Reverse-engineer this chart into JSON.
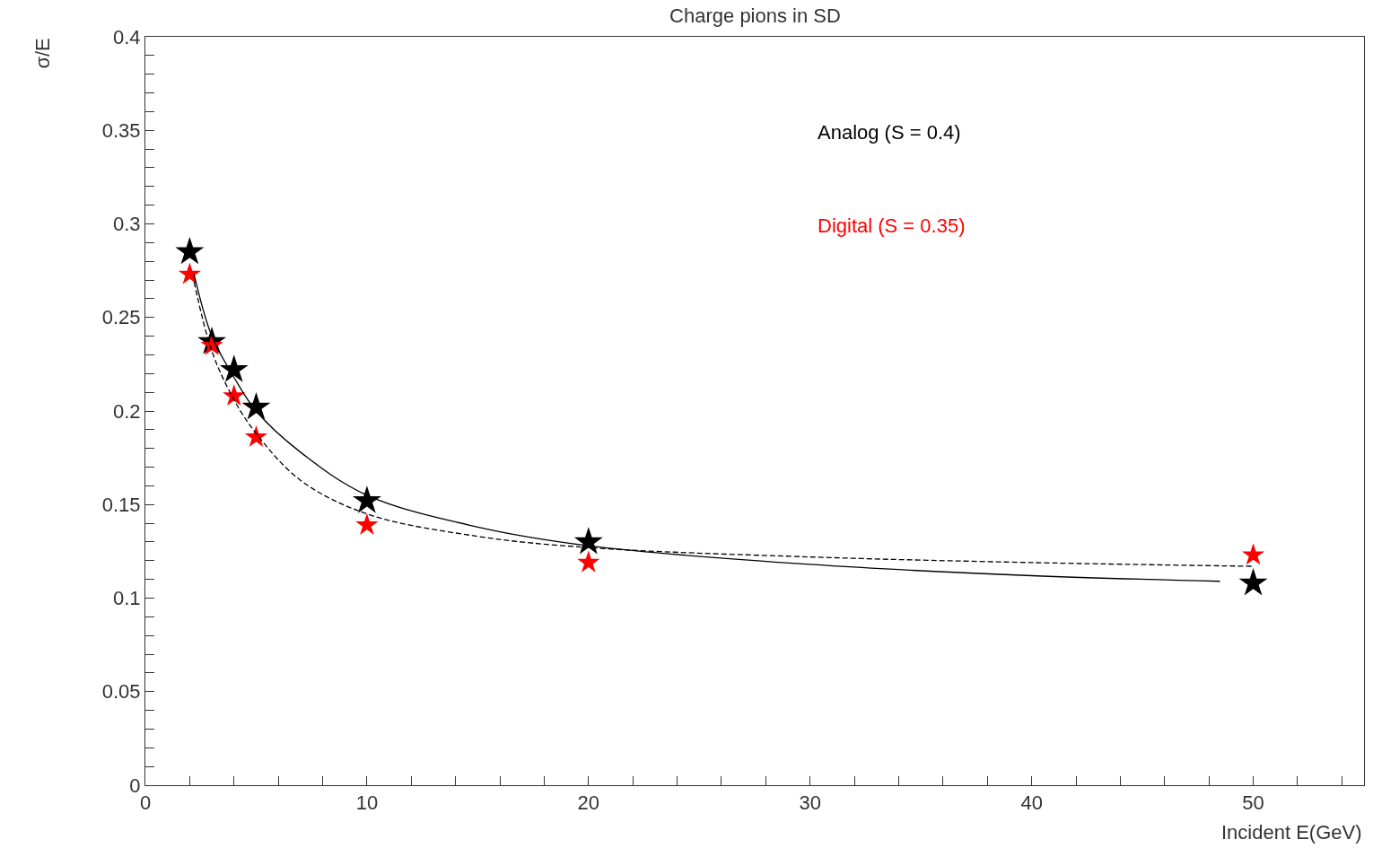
{
  "chart_data": {
    "type": "scatter",
    "title": "Charge pions in SD",
    "xlabel": "Incident E(GeV)",
    "ylabel": "σ/E",
    "marker": "star",
    "legend": false,
    "xlim": [
      0,
      55
    ],
    "ylim": [
      0,
      0.4
    ],
    "xticks": [
      0,
      {
        "value": 2,
        "label": null
      },
      {
        "value": 4,
        "label": null
      },
      {
        "value": 6,
        "label": null
      },
      {
        "value": 8,
        "label": null
      },
      10,
      {
        "value": 12,
        "label": null
      },
      {
        "value": 14,
        "label": null
      },
      {
        "value": 16,
        "label": null
      },
      {
        "value": 18,
        "label": null
      },
      20,
      {
        "value": 22,
        "label": null
      },
      {
        "value": 24,
        "label": null
      },
      {
        "value": 26,
        "label": null
      },
      {
        "value": 28,
        "label": null
      },
      30,
      {
        "value": 32,
        "label": null
      },
      {
        "value": 34,
        "label": null
      },
      {
        "value": 36,
        "label": null
      },
      {
        "value": 38,
        "label": null
      },
      40,
      {
        "value": 42,
        "label": null
      },
      {
        "value": 44,
        "label": null
      },
      {
        "value": 46,
        "label": null
      },
      {
        "value": 48,
        "label": null
      },
      50,
      {
        "value": 52,
        "label": null
      },
      {
        "value": 54,
        "label": null
      }
    ],
    "yticks": [
      0,
      {
        "value": 0.01,
        "label": null
      },
      {
        "value": 0.02,
        "label": null
      },
      {
        "value": 0.03,
        "label": null
      },
      {
        "value": 0.04,
        "label": null
      },
      0.05,
      {
        "value": 0.06,
        "label": null
      },
      {
        "value": 0.07,
        "label": null
      },
      {
        "value": 0.08,
        "label": null
      },
      {
        "value": 0.09,
        "label": null
      },
      0.1,
      {
        "value": 0.11,
        "label": null
      },
      {
        "value": 0.12,
        "label": null
      },
      {
        "value": 0.13,
        "label": null
      },
      {
        "value": 0.14,
        "label": null
      },
      0.15,
      {
        "value": 0.16,
        "label": null
      },
      {
        "value": 0.17,
        "label": null
      },
      {
        "value": 0.18,
        "label": null
      },
      {
        "value": 0.19,
        "label": null
      },
      0.2,
      {
        "value": 0.21,
        "label": null
      },
      {
        "value": 0.22,
        "label": null
      },
      {
        "value": 0.23,
        "label": null
      },
      {
        "value": 0.24,
        "label": null
      },
      0.25,
      {
        "value": 0.26,
        "label": null
      },
      {
        "value": 0.27,
        "label": null
      },
      {
        "value": 0.28,
        "label": null
      },
      {
        "value": 0.29,
        "label": null
      },
      0.3,
      {
        "value": 0.31,
        "label": null
      },
      {
        "value": 0.32,
        "label": null
      },
      {
        "value": 0.33,
        "label": null
      },
      {
        "value": 0.34,
        "label": null
      },
      0.35,
      {
        "value": 0.36,
        "label": null
      },
      {
        "value": 0.37,
        "label": null
      },
      {
        "value": 0.38,
        "label": null
      },
      {
        "value": 0.39,
        "label": null
      },
      0.4
    ],
    "series": [
      {
        "type": "line",
        "color": "#000000",
        "line_style": "solid",
        "marker": "none",
        "x": [
          2.2,
          3,
          4,
          5,
          7,
          10,
          15,
          20,
          30,
          40,
          48.5
        ],
        "values": [
          0.273,
          0.24,
          0.218,
          0.2,
          0.178,
          0.155,
          0.138,
          0.128,
          0.118,
          0.112,
          0.109
        ]
      },
      {
        "type": "line",
        "color": "#000000",
        "line_style": "dashed",
        "marker": "none",
        "x": [
          2.2,
          3,
          4,
          5,
          7,
          10,
          15,
          20,
          30,
          40,
          50
        ],
        "values": [
          0.269,
          0.232,
          0.206,
          0.188,
          0.163,
          0.145,
          0.133,
          0.127,
          0.122,
          0.119,
          0.117
        ]
      },
      {
        "name": "Analog (S = 0.4)",
        "color": "#000000",
        "x": [
          2,
          3,
          4,
          5,
          10,
          20,
          50
        ],
        "values": [
          0.285,
          0.237,
          0.222,
          0.202,
          0.152,
          0.13,
          0.108
        ]
      },
      {
        "name": "Digital (S = 0.35)",
        "color": "#ff0000",
        "x": [
          2,
          3,
          4,
          5,
          10,
          20,
          50
        ],
        "values": [
          0.273,
          0.235,
          0.208,
          0.186,
          0.139,
          0.119,
          0.123
        ]
      }
    ]
  }
}
